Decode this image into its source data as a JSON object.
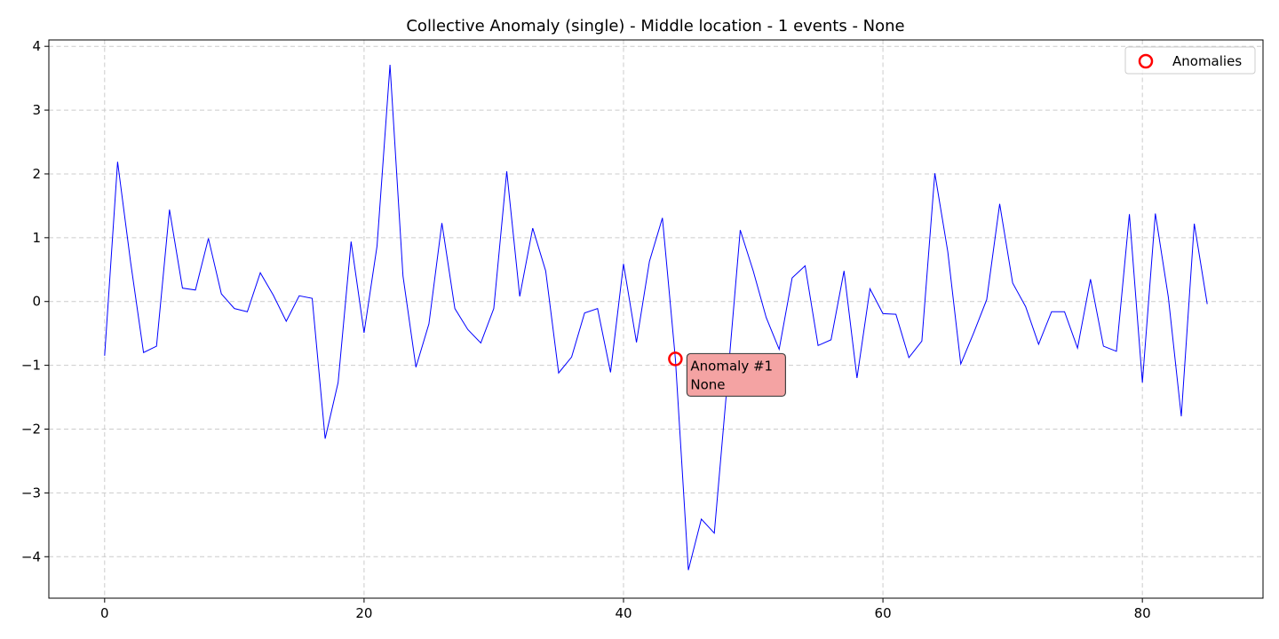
{
  "chart_data": {
    "type": "line",
    "title": "Collective Anomaly (single) - Middle location - 1 events - None",
    "xlabel": "",
    "ylabel": "",
    "xlim": [
      -4.3,
      89.3
    ],
    "ylim": [
      -4.65,
      4.1
    ],
    "x_ticks": [
      0,
      20,
      40,
      60,
      80
    ],
    "y_ticks": [
      -4,
      -3,
      -2,
      -1,
      0,
      1,
      2,
      3,
      4
    ],
    "x_tick_labels": [
      "0",
      "20",
      "40",
      "60",
      "80"
    ],
    "y_tick_labels": [
      "−4",
      "−3",
      "−2",
      "−1",
      "0",
      "1",
      "2",
      "3",
      "4"
    ],
    "grid": true,
    "legend": {
      "position": "top-right",
      "entries": [
        "Anomalies"
      ]
    },
    "series": [
      {
        "color": "#0000ff",
        "values": [
          -0.85,
          2.19,
          0.62,
          -0.8,
          -0.7,
          1.44,
          0.21,
          0.18,
          0.99,
          0.12,
          -0.11,
          -0.16,
          0.45,
          0.1,
          -0.31,
          0.09,
          0.05,
          -2.15,
          -1.27,
          0.94,
          -0.49,
          0.87,
          3.71,
          0.4,
          -1.03,
          -0.35,
          1.23,
          -0.11,
          -0.44,
          -0.65,
          -0.11,
          2.04,
          0.08,
          1.15,
          0.48,
          -1.12,
          -0.87,
          -0.18,
          -0.11,
          -1.11,
          0.59,
          -0.64,
          0.63,
          1.31,
          -0.9,
          -4.21,
          -3.41,
          -3.63,
          -1.28,
          1.12,
          0.48,
          -0.25,
          -0.75,
          0.37,
          0.56,
          -0.69,
          -0.6,
          0.48,
          -1.2,
          0.2,
          -0.19,
          -0.2,
          -0.88,
          -0.62,
          2.01,
          0.78,
          -0.98,
          -0.49,
          0.03,
          1.53,
          0.29,
          -0.08,
          -0.67,
          -0.16,
          -0.16,
          -0.73,
          0.35,
          -0.7,
          -0.78,
          1.37,
          -1.27,
          1.38,
          0.07,
          -1.8,
          1.22,
          -0.04
        ]
      }
    ],
    "anomalies": [
      {
        "x": 44,
        "y": -0.9,
        "color": "#ff0000"
      }
    ],
    "annotations": [
      {
        "x": 44,
        "y": -0.9,
        "lines": [
          "Anomaly #1",
          "None"
        ],
        "background": "#f4a3a3"
      }
    ]
  }
}
